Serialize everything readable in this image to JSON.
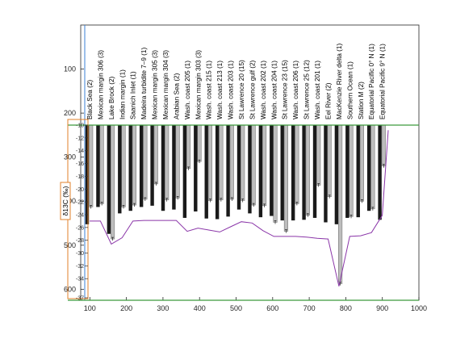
{
  "chart_data": {
    "type": "bar",
    "title": "",
    "xlabel": "",
    "ylabel": "",
    "xlim": [
      75,
      1000
    ],
    "ylim": [
      625,
      0
    ],
    "x_ticks": [
      100,
      200,
      300,
      400,
      500,
      600,
      700,
      800,
      900,
      1000
    ],
    "y_ticks": [
      100,
      200,
      300,
      400,
      500,
      600
    ],
    "grid": false,
    "legend": "none",
    "inner_axis": {
      "label": "δ13C (‰)",
      "ticks": [
        -10,
        -12,
        -14,
        -16,
        -18,
        -20,
        -22,
        -24,
        -26,
        -28,
        -30,
        -32,
        -34,
        -37
      ],
      "range": [
        -10,
        -37
      ]
    },
    "categories": [
      "Black Sea (2)",
      "Mexican margin 306 (3)",
      "Lake Brock (2)",
      "Indian margin (1)",
      "Saanich Inlet (1)",
      "Madeira turbidite 7–9 (1)",
      "Mexican margin 305 (3)",
      "Mexican margin 304 (3)",
      "Arabian Sea (2)",
      "Wash. coast 205 (1)",
      "Mexican margin 303 (3)",
      "Wash. coast 215 (1)",
      "Wash. coast 213 (1)",
      "Wash. coast 203 (1)",
      "St Lawrence 20 (15)",
      "St Lawrence gulf (2)",
      "Wash. coast 202 (1)",
      "Wash. coast 204 (1)",
      "St Lawrence 23 (15)",
      "Wash. coast 206 (1)",
      "St Lawrence 25 (12)",
      "Wash. coast 201 (1)",
      "Eel River (2)",
      "MacKenzie River delta (1)",
      "Southern Ocean (1)",
      "Station M (2)",
      "Equatorial Pacific 0° N (1)",
      "Equatorial Pacific 9° N (1)"
    ],
    "series": [
      {
        "values": [
          -25.5,
          -22.8,
          -27,
          -23.8,
          -23.4,
          -22.8,
          -22.6,
          -23.4,
          -23.2,
          -24.5,
          -23.5,
          -24.6,
          -24.7,
          -24.3,
          -23.2,
          -23.8,
          -24.4,
          -24.2,
          -24.9,
          -24.9,
          -24.8,
          -24.5,
          -25.2,
          -25.5,
          -24.5,
          -24.4,
          -23.4,
          -24.8
        ]
      },
      {
        "values": [
          -22.8,
          -22.3,
          -27.8,
          -22.8,
          -22.5,
          -21.6,
          -19.2,
          -21.7,
          -21.4,
          -16.8,
          -15.7,
          -21.8,
          -21.7,
          -21.6,
          -21.8,
          -22.5,
          -22.6,
          -25.2,
          -26.6,
          -22.3,
          -24.1,
          -19.4,
          -21.2,
          -34.8,
          -24.3,
          -21.9,
          -23.1,
          -16.4
        ]
      }
    ],
    "line_values": [
      -25.0,
      -25.0,
      -28.6,
      -27.6,
      -25.0,
      -24.9,
      -24.9,
      -24.9,
      -24.9,
      -26.6,
      -26.1,
      -26.4,
      -26.7,
      -25.9,
      -25.1,
      -25.3,
      -26.5,
      -27.4,
      -27.4,
      -27.4,
      -27.5,
      -27.7,
      -27.8,
      -35.2,
      -27.4,
      -27.3,
      -26.8,
      -24.1
    ]
  },
  "colors": {
    "series_dark": "#1a1a1a",
    "series_light": "#bdbdbd",
    "line": "#8a35a8",
    "blue_rule": "#3a7fd5",
    "green_rule": "#3c9a3c",
    "orange_box": "#e0812b",
    "axes": "#262626"
  }
}
